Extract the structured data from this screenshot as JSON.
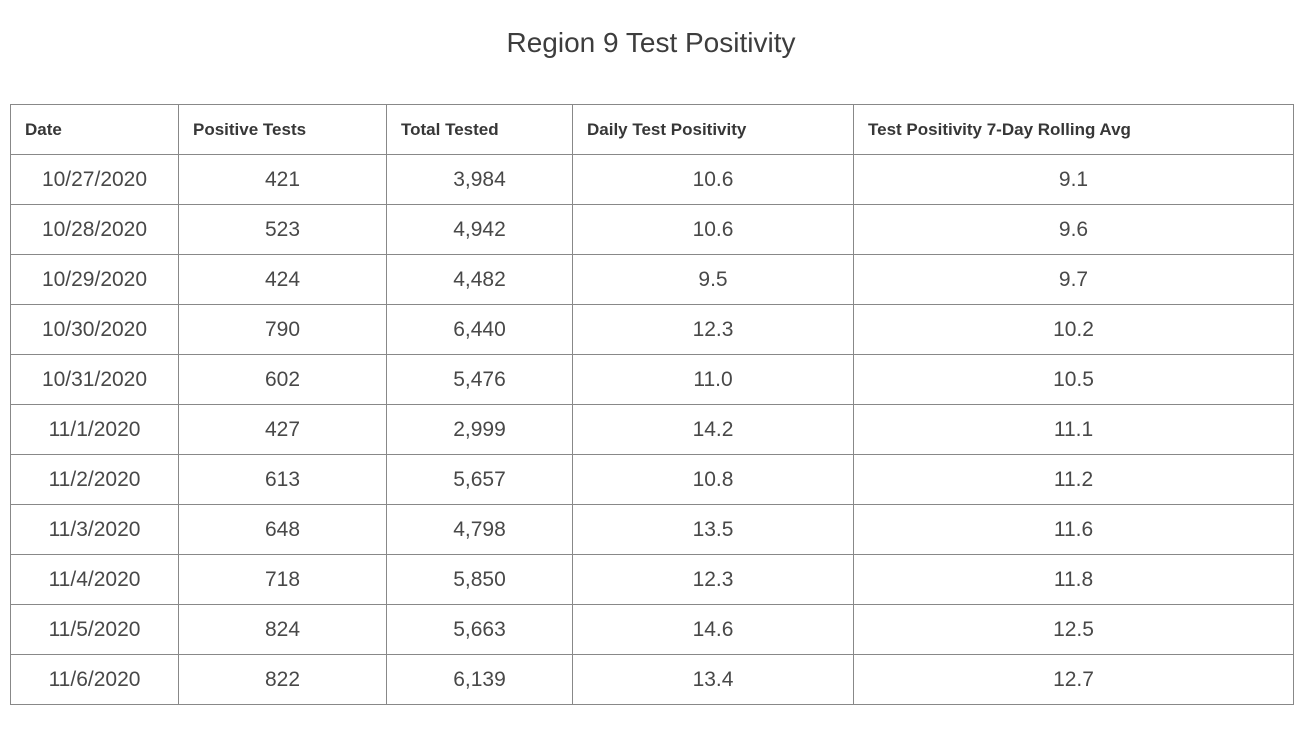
{
  "title": "Region 9 Test Positivity",
  "colors": {
    "border": "#888888",
    "title_text": "#3d3d3d",
    "header_text": "#373737",
    "cell_text": "#484848",
    "background": "#ffffff"
  },
  "table": {
    "columns": [
      "Date",
      "Positive Tests",
      "Total Tested",
      "Daily Test Positivity",
      "Test Positivity 7-Day Rolling Avg"
    ],
    "rows": [
      [
        "10/27/2020",
        "421",
        "3,984",
        "10.6",
        "9.1"
      ],
      [
        "10/28/2020",
        "523",
        "4,942",
        "10.6",
        "9.6"
      ],
      [
        "10/29/2020",
        "424",
        "4,482",
        "9.5",
        "9.7"
      ],
      [
        "10/30/2020",
        "790",
        "6,440",
        "12.3",
        "10.2"
      ],
      [
        "10/31/2020",
        "602",
        "5,476",
        "11.0",
        "10.5"
      ],
      [
        "11/1/2020",
        "427",
        "2,999",
        "14.2",
        "11.1"
      ],
      [
        "11/2/2020",
        "613",
        "5,657",
        "10.8",
        "11.2"
      ],
      [
        "11/3/2020",
        "648",
        "4,798",
        "13.5",
        "11.6"
      ],
      [
        "11/4/2020",
        "718",
        "5,850",
        "12.3",
        "11.8"
      ],
      [
        "11/5/2020",
        "824",
        "5,663",
        "14.6",
        "12.5"
      ],
      [
        "11/6/2020",
        "822",
        "6,139",
        "13.4",
        "12.7"
      ]
    ]
  },
  "chart_data": {
    "type": "table",
    "title": "Region 9 Test Positivity",
    "columns": [
      "Date",
      "Positive Tests",
      "Total Tested",
      "Daily Test Positivity",
      "Test Positivity 7-Day Rolling Avg"
    ],
    "rows": [
      {
        "date": "10/27/2020",
        "positive_tests": 421,
        "total_tested": 3984,
        "daily_test_positivity": 10.6,
        "rolling_avg_7day": 9.1
      },
      {
        "date": "10/28/2020",
        "positive_tests": 523,
        "total_tested": 4942,
        "daily_test_positivity": 10.6,
        "rolling_avg_7day": 9.6
      },
      {
        "date": "10/29/2020",
        "positive_tests": 424,
        "total_tested": 4482,
        "daily_test_positivity": 9.5,
        "rolling_avg_7day": 9.7
      },
      {
        "date": "10/30/2020",
        "positive_tests": 790,
        "total_tested": 6440,
        "daily_test_positivity": 12.3,
        "rolling_avg_7day": 10.2
      },
      {
        "date": "10/31/2020",
        "positive_tests": 602,
        "total_tested": 5476,
        "daily_test_positivity": 11.0,
        "rolling_avg_7day": 10.5
      },
      {
        "date": "11/1/2020",
        "positive_tests": 427,
        "total_tested": 2999,
        "daily_test_positivity": 14.2,
        "rolling_avg_7day": 11.1
      },
      {
        "date": "11/2/2020",
        "positive_tests": 613,
        "total_tested": 5657,
        "daily_test_positivity": 10.8,
        "rolling_avg_7day": 11.2
      },
      {
        "date": "11/3/2020",
        "positive_tests": 648,
        "total_tested": 4798,
        "daily_test_positivity": 13.5,
        "rolling_avg_7day": 11.6
      },
      {
        "date": "11/4/2020",
        "positive_tests": 718,
        "total_tested": 5850,
        "daily_test_positivity": 12.3,
        "rolling_avg_7day": 11.8
      },
      {
        "date": "11/5/2020",
        "positive_tests": 824,
        "total_tested": 5663,
        "daily_test_positivity": 14.6,
        "rolling_avg_7day": 12.5
      },
      {
        "date": "11/6/2020",
        "positive_tests": 822,
        "total_tested": 6139,
        "daily_test_positivity": 13.4,
        "rolling_avg_7day": 12.7
      }
    ]
  }
}
